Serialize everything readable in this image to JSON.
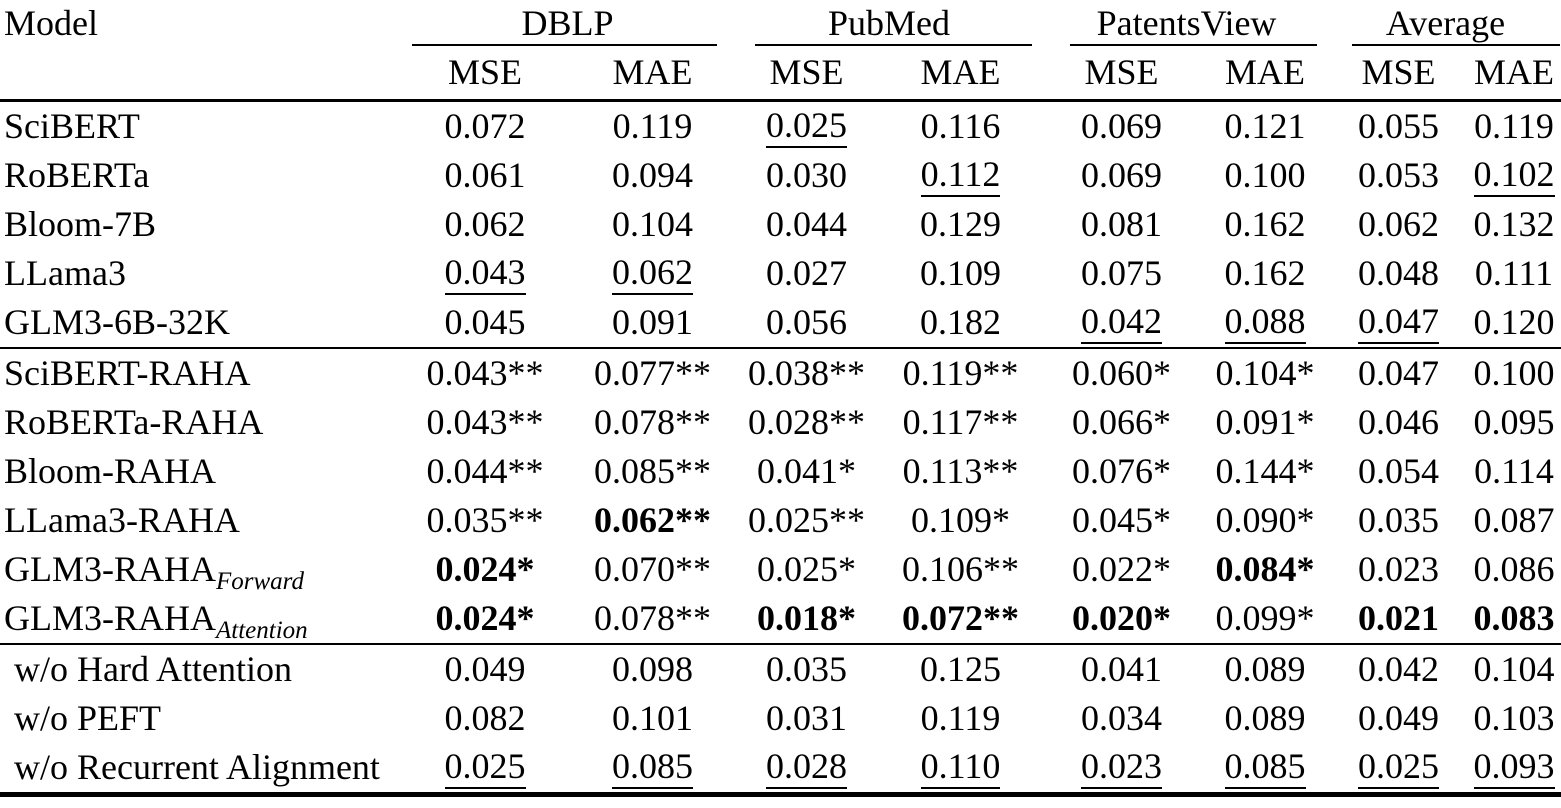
{
  "colors": {
    "text": "#000000",
    "background": "#ffffff",
    "rule": "#000000"
  },
  "header": {
    "model_col": "Model",
    "groups": [
      {
        "label": "DBLP"
      },
      {
        "label": "PubMed"
      },
      {
        "label": "PatentsView"
      },
      {
        "label": "Average"
      }
    ],
    "metrics": [
      "MSE",
      "MAE",
      "MSE",
      "MAE",
      "MSE",
      "MAE",
      "MSE",
      "MAE"
    ]
  },
  "sections": [
    {
      "name": "baselines",
      "rows": [
        {
          "model": "SciBERT",
          "sub": "",
          "cells": [
            {
              "t": "0.072"
            },
            {
              "t": "0.119"
            },
            {
              "t": "0.025",
              "u": true
            },
            {
              "t": "0.116"
            },
            {
              "t": "0.069"
            },
            {
              "t": "0.121"
            },
            {
              "t": "0.055"
            },
            {
              "t": "0.119"
            }
          ]
        },
        {
          "model": "RoBERTa",
          "sub": "",
          "cells": [
            {
              "t": "0.061"
            },
            {
              "t": "0.094"
            },
            {
              "t": "0.030"
            },
            {
              "t": "0.112",
              "u": true
            },
            {
              "t": "0.069"
            },
            {
              "t": "0.100"
            },
            {
              "t": "0.053"
            },
            {
              "t": "0.102",
              "u": true
            }
          ]
        },
        {
          "model": "Bloom-7B",
          "sub": "",
          "cells": [
            {
              "t": "0.062"
            },
            {
              "t": "0.104"
            },
            {
              "t": "0.044"
            },
            {
              "t": "0.129"
            },
            {
              "t": "0.081"
            },
            {
              "t": "0.162"
            },
            {
              "t": "0.062"
            },
            {
              "t": "0.132"
            }
          ]
        },
        {
          "model": "LLama3",
          "sub": "",
          "cells": [
            {
              "t": "0.043",
              "u": true
            },
            {
              "t": "0.062",
              "u": true
            },
            {
              "t": "0.027"
            },
            {
              "t": "0.109"
            },
            {
              "t": "0.075"
            },
            {
              "t": "0.162"
            },
            {
              "t": "0.048"
            },
            {
              "t": "0.111"
            }
          ]
        },
        {
          "model": "GLM3-6B-32K",
          "sub": "",
          "cells": [
            {
              "t": "0.045"
            },
            {
              "t": "0.091"
            },
            {
              "t": "0.056"
            },
            {
              "t": "0.182"
            },
            {
              "t": "0.042",
              "u": true
            },
            {
              "t": "0.088",
              "u": true
            },
            {
              "t": "0.047",
              "u": true
            },
            {
              "t": "0.120"
            }
          ]
        }
      ]
    },
    {
      "name": "raha",
      "rows": [
        {
          "model": "SciBERT-RAHA",
          "sub": "",
          "cells": [
            {
              "t": "0.043**"
            },
            {
              "t": "0.077**"
            },
            {
              "t": "0.038**"
            },
            {
              "t": "0.119**"
            },
            {
              "t": "0.060*"
            },
            {
              "t": "0.104*"
            },
            {
              "t": "0.047"
            },
            {
              "t": "0.100"
            }
          ]
        },
        {
          "model": "RoBERTa-RAHA",
          "sub": "",
          "cells": [
            {
              "t": "0.043**"
            },
            {
              "t": "0.078**"
            },
            {
              "t": "0.028**"
            },
            {
              "t": "0.117**"
            },
            {
              "t": "0.066*"
            },
            {
              "t": "0.091*"
            },
            {
              "t": "0.046"
            },
            {
              "t": "0.095"
            }
          ]
        },
        {
          "model": "Bloom-RAHA",
          "sub": "",
          "cells": [
            {
              "t": "0.044**"
            },
            {
              "t": "0.085**"
            },
            {
              "t": "0.041*"
            },
            {
              "t": "0.113**"
            },
            {
              "t": "0.076*"
            },
            {
              "t": "0.144*"
            },
            {
              "t": "0.054"
            },
            {
              "t": "0.114"
            }
          ]
        },
        {
          "model": "LLama3-RAHA",
          "sub": "",
          "cells": [
            {
              "t": "0.035**"
            },
            {
              "t": "0.062**",
              "b": true
            },
            {
              "t": "0.025**"
            },
            {
              "t": "0.109*"
            },
            {
              "t": "0.045*"
            },
            {
              "t": "0.090*"
            },
            {
              "t": "0.035"
            },
            {
              "t": "0.087"
            }
          ]
        },
        {
          "model": "GLM3-RAHA",
          "sub": "Forward",
          "cells": [
            {
              "t": "0.024*",
              "b": true
            },
            {
              "t": "0.070**"
            },
            {
              "t": "0.025*"
            },
            {
              "t": "0.106**"
            },
            {
              "t": "0.022*"
            },
            {
              "t": "0.084*",
              "b": true
            },
            {
              "t": "0.023"
            },
            {
              "t": "0.086"
            }
          ]
        },
        {
          "model": "GLM3-RAHA",
          "sub": "Attention",
          "cells": [
            {
              "t": "0.024*",
              "b": true
            },
            {
              "t": "0.078**"
            },
            {
              "t": "0.018*",
              "b": true
            },
            {
              "t": "0.072**",
              "b": true
            },
            {
              "t": "0.020*",
              "b": true
            },
            {
              "t": "0.099*"
            },
            {
              "t": "0.021",
              "b": true
            },
            {
              "t": "0.083",
              "b": true
            }
          ]
        }
      ]
    },
    {
      "name": "ablations",
      "rows": [
        {
          "model": "w/o Hard Attention",
          "sub": "",
          "cells": [
            {
              "t": "0.049"
            },
            {
              "t": "0.098"
            },
            {
              "t": "0.035"
            },
            {
              "t": "0.125"
            },
            {
              "t": "0.041"
            },
            {
              "t": "0.089"
            },
            {
              "t": "0.042"
            },
            {
              "t": "0.104"
            }
          ]
        },
        {
          "model": "w/o PEFT",
          "sub": "",
          "cells": [
            {
              "t": "0.082"
            },
            {
              "t": "0.101"
            },
            {
              "t": "0.031"
            },
            {
              "t": "0.119"
            },
            {
              "t": "0.034"
            },
            {
              "t": "0.089"
            },
            {
              "t": "0.049"
            },
            {
              "t": "0.103"
            }
          ]
        },
        {
          "model": "w/o Recurrent Alignment",
          "sub": "",
          "cells": [
            {
              "t": "0.025",
              "u": true
            },
            {
              "t": "0.085",
              "u": true
            },
            {
              "t": "0.028",
              "u": true
            },
            {
              "t": "0.110",
              "u": true
            },
            {
              "t": "0.023",
              "u": true
            },
            {
              "t": "0.085",
              "u": true
            },
            {
              "t": "0.025",
              "u": true
            },
            {
              "t": "0.093",
              "u": true
            }
          ]
        }
      ]
    }
  ]
}
